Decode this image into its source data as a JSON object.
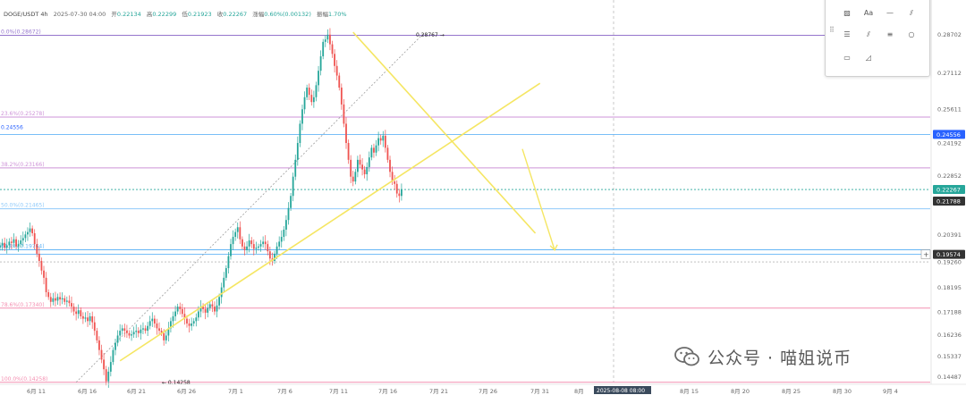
{
  "header": {
    "symbol": "DOGE/USDT 4h",
    "datetime": "2025-07-30 04:00",
    "open_label": "开",
    "open": "0.22134",
    "high_label": "高",
    "high": "0.22299",
    "low_label": "低",
    "low": "0.21923",
    "close_label": "收",
    "close": "0.22267",
    "change_label": "涨幅",
    "change": "0.60%(0.00132)",
    "amp_label": "振幅",
    "amp": "1.70%"
  },
  "palette": {
    "tools": [
      "text-tool",
      "horizontal-line-tool",
      "parallel-channel-tool",
      "image-tool",
      "text-label-tool",
      "ray-tool",
      "fib-tool",
      "pitchfork-tool",
      "circle-tool",
      "rectangle-tool",
      "pattern-tool"
    ],
    "text_label": "Aa"
  },
  "watermark": {
    "text": "公众号 · 喵姐说币"
  },
  "chart_data": {
    "type": "candlestick",
    "title": "",
    "x_tick_labels": [
      "6月 11",
      "6月 16",
      "6月 21",
      "6月 26",
      "7月 1",
      "7月 6",
      "7月 11",
      "7月 16",
      "7月 21",
      "7月 26",
      "7月 31",
      "8月",
      "2025-08-08 08:00",
      "8月 15",
      "8月 20",
      "8月 25",
      "8月 30",
      "9月 4"
    ],
    "y_tick_labels": [
      "0.28702",
      "0.27112",
      "0.25611",
      "0.24192",
      "0.22852",
      "0.21788",
      "0.20391",
      "0.19260",
      "0.18195",
      "0.17188",
      "0.16236",
      "0.15337",
      "0.14487"
    ],
    "ylim": [
      0.1425,
      0.291
    ],
    "current_price": "0.22267",
    "price_tags": [
      {
        "label": "0.24556",
        "color": "#2962ff"
      },
      {
        "label": "0.22267",
        "color": "#26a69a"
      },
      {
        "label": "0.21788",
        "color": "#333333"
      },
      {
        "label": "0.19574",
        "color": "#333333"
      }
    ],
    "fib_levels": [
      {
        "label": "0.0%(0.28672)",
        "value": 0.28672,
        "color": "#9575cd"
      },
      {
        "label": "23.6%(0.25278)",
        "value": 0.25278,
        "color": "#ce93d8"
      },
      {
        "label": "38.2%(0.23166)",
        "value": 0.23166,
        "color": "#ce93d8"
      },
      {
        "label": "50.0%(0.21465)",
        "value": 0.21465,
        "color": "#90caf9"
      },
      {
        "label": "61.8%(0.19764)",
        "value": 0.19764,
        "color": "#64b5f6"
      },
      {
        "label": "78.6%(0.17340)",
        "value": 0.1734,
        "color": "#f48fb1"
      },
      {
        "label": "100.0%(0.14258)",
        "value": 0.14258,
        "color": "#f48fb1"
      }
    ],
    "hlines": [
      {
        "label": "0.24556",
        "value": 0.24556,
        "color": "#64b5f6"
      },
      {
        "label": "0.19574",
        "value": 0.19574,
        "color": "#64b5f6"
      }
    ],
    "annotations": [
      {
        "label": "0.28767",
        "value": 0.28767
      },
      {
        "label": "0.14258",
        "value": 0.14258
      }
    ],
    "candles": [
      0.1995,
      0.2005,
      0.1985,
      0.1995,
      0.201,
      0.2005,
      0.202,
      0.199,
      0.2,
      0.2015,
      0.2025,
      0.204,
      0.205,
      0.2065,
      0.2045,
      0.2,
      0.196,
      0.193,
      0.189,
      0.186,
      0.18,
      0.178,
      0.176,
      0.1775,
      0.1765,
      0.178,
      0.177,
      0.1775,
      0.176,
      0.1765,
      0.1755,
      0.174,
      0.172,
      0.171,
      0.1725,
      0.17,
      0.169,
      0.1695,
      0.168,
      0.17,
      0.1675,
      0.164,
      0.16,
      0.156,
      0.152,
      0.148,
      0.143,
      0.147,
      0.151,
      0.156,
      0.159,
      0.162,
      0.164,
      0.165,
      0.164,
      0.163,
      0.162,
      0.1625,
      0.1635,
      0.164,
      0.163,
      0.1645,
      0.165,
      0.164,
      0.166,
      0.168,
      0.169,
      0.167,
      0.165,
      0.164,
      0.163,
      0.16,
      0.162,
      0.165,
      0.168,
      0.17,
      0.172,
      0.174,
      0.173,
      0.171,
      0.169,
      0.167,
      0.166,
      0.167,
      0.168,
      0.1695,
      0.172,
      0.174,
      0.173,
      0.1715,
      0.1735,
      0.175,
      0.174,
      0.172,
      0.1745,
      0.178,
      0.182,
      0.186,
      0.19,
      0.195,
      0.2,
      0.203,
      0.205,
      0.207,
      0.202,
      0.199,
      0.1975,
      0.199,
      0.2015,
      0.2,
      0.198,
      0.1985,
      0.199,
      0.2,
      0.201,
      0.2,
      0.197,
      0.194,
      0.193,
      0.196,
      0.199,
      0.201,
      0.203,
      0.206,
      0.21,
      0.215,
      0.22,
      0.228,
      0.235,
      0.242,
      0.25,
      0.256,
      0.261,
      0.265,
      0.262,
      0.259,
      0.261,
      0.266,
      0.272,
      0.278,
      0.284,
      0.285,
      0.287,
      0.283,
      0.279,
      0.274,
      0.27,
      0.265,
      0.258,
      0.25,
      0.242,
      0.235,
      0.228,
      0.226,
      0.23,
      0.235,
      0.233,
      0.231,
      0.229,
      0.232,
      0.236,
      0.24,
      0.238,
      0.241,
      0.244,
      0.243,
      0.245,
      0.24,
      0.235,
      0.23,
      0.226,
      0.225,
      0.221,
      0.22,
      0.2227
    ],
    "drawings": [
      {
        "type": "trendline",
        "name": "ascending-support-line",
        "color": "#f5e663",
        "from": {
          "index": 52,
          "price": 0.1515
        },
        "to": {
          "index": 234,
          "price": 0.2668
        }
      },
      {
        "type": "trendline",
        "name": "descending-resistance-line",
        "color": "#f5e663",
        "from": {
          "index": 153,
          "price": 0.288
        },
        "to": {
          "index": 232,
          "price": 0.2045
        }
      },
      {
        "type": "arrow",
        "name": "projection-arrow",
        "color": "#f5e663",
        "from": {
          "index": 200,
          "price": 0.2395
        },
        "to": {
          "index": 214,
          "price": 0.1975
        }
      },
      {
        "type": "dashed",
        "name": "fib-diagonal",
        "color": "#9e9e9e",
        "from": {
          "index": 33,
          "price": 0.1426
        },
        "to": {
          "index": 145,
          "price": 0.2877
        }
      }
    ]
  }
}
